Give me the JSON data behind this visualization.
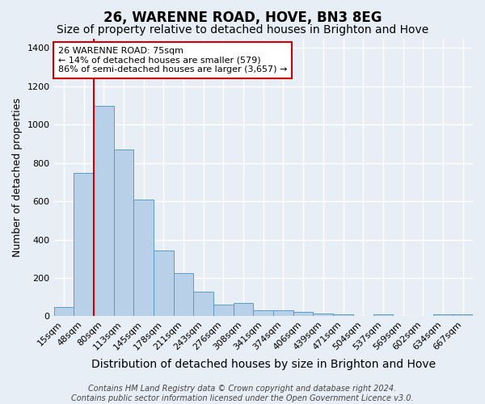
{
  "title": "26, WARENNE ROAD, HOVE, BN3 8EG",
  "subtitle": "Size of property relative to detached houses in Brighton and Hove",
  "xlabel": "Distribution of detached houses by size in Brighton and Hove",
  "ylabel": "Number of detached properties",
  "categories": [
    "15sqm",
    "48sqm",
    "80sqm",
    "113sqm",
    "145sqm",
    "178sqm",
    "211sqm",
    "243sqm",
    "276sqm",
    "308sqm",
    "341sqm",
    "374sqm",
    "406sqm",
    "439sqm",
    "471sqm",
    "504sqm",
    "537sqm",
    "569sqm",
    "602sqm",
    "634sqm",
    "667sqm"
  ],
  "values": [
    48,
    750,
    1100,
    870,
    610,
    345,
    225,
    130,
    60,
    70,
    32,
    30,
    22,
    15,
    10,
    0,
    10,
    0,
    0,
    10,
    12
  ],
  "bar_color": "#b8d0e8",
  "bar_edge_color": "#5a9aca",
  "bg_color": "#e8eef5",
  "grid_color": "#ffffff",
  "vline_color": "#cc0000",
  "annotation_text": "26 WARENNE ROAD: 75sqm\n← 14% of detached houses are smaller (579)\n86% of semi-detached houses are larger (3,657) →",
  "annotation_box_color": "#ffffff",
  "annotation_box_edge": "#cc0000",
  "footer": "Contains HM Land Registry data © Crown copyright and database right 2024.\nContains public sector information licensed under the Open Government Licence v3.0.",
  "ylim": [
    0,
    1450
  ],
  "yticks": [
    0,
    200,
    400,
    600,
    800,
    1000,
    1200,
    1400
  ],
  "title_fontsize": 12,
  "subtitle_fontsize": 10,
  "xlabel_fontsize": 10,
  "ylabel_fontsize": 9,
  "footer_fontsize": 7,
  "tick_fontsize": 8
}
